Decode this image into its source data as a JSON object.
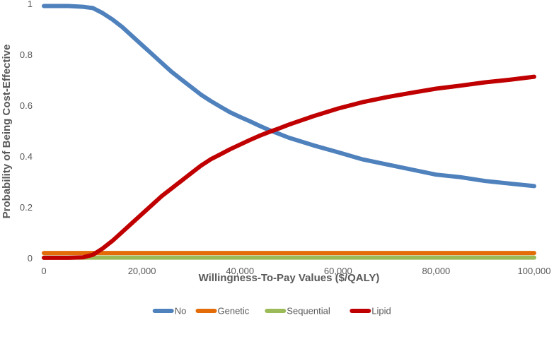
{
  "chart_data": {
    "type": "line",
    "title": "",
    "xlabel": "Willingness-To-Pay Values ($/QALY)",
    "ylabel": "Probability of Being Cost-Effective",
    "xlim": [
      0,
      100000
    ],
    "ylim": [
      0,
      1
    ],
    "x_ticks": [
      0,
      20000,
      40000,
      60000,
      80000,
      100000
    ],
    "x_tick_labels": [
      "0",
      "20,000",
      "40,000",
      "60,000",
      "80,000",
      "100,000"
    ],
    "y_ticks": [
      0,
      0.2,
      0.4,
      0.6,
      0.8,
      1
    ],
    "y_tick_labels": [
      "0",
      "0.2",
      "0.4",
      "0.6",
      "0.8",
      "1"
    ],
    "grid": false,
    "legend_position": "bottom",
    "x": [
      0,
      5000,
      8000,
      10000,
      12000,
      14000,
      16000,
      18000,
      20000,
      22000,
      24000,
      26000,
      28000,
      30000,
      32000,
      34000,
      36000,
      38000,
      40000,
      42000,
      44000,
      46000,
      48000,
      50000,
      55000,
      60000,
      65000,
      70000,
      75000,
      80000,
      85000,
      90000,
      95000,
      100000
    ],
    "series": [
      {
        "name": "No",
        "color": "#4f81bd",
        "values": [
          0.993,
          0.993,
          0.99,
          0.985,
          0.965,
          0.94,
          0.91,
          0.875,
          0.84,
          0.805,
          0.77,
          0.735,
          0.705,
          0.675,
          0.645,
          0.62,
          0.597,
          0.575,
          0.557,
          0.54,
          0.522,
          0.505,
          0.49,
          0.475,
          0.445,
          0.418,
          0.39,
          0.37,
          0.35,
          0.33,
          0.32,
          0.305,
          0.295,
          0.285
        ]
      },
      {
        "name": "Genetic",
        "color": "#e36c09",
        "values": [
          0.022,
          0.022,
          0.022,
          0.022,
          0.022,
          0.022,
          0.022,
          0.022,
          0.022,
          0.022,
          0.022,
          0.022,
          0.022,
          0.022,
          0.022,
          0.022,
          0.022,
          0.022,
          0.022,
          0.022,
          0.022,
          0.022,
          0.022,
          0.022,
          0.022,
          0.022,
          0.022,
          0.022,
          0.022,
          0.022,
          0.022,
          0.022,
          0.022,
          0.022
        ]
      },
      {
        "name": "Sequential",
        "color": "#9bbb59",
        "values": [
          0.004,
          0.004,
          0.004,
          0.004,
          0.004,
          0.004,
          0.004,
          0.004,
          0.004,
          0.004,
          0.004,
          0.004,
          0.004,
          0.004,
          0.004,
          0.004,
          0.004,
          0.004,
          0.004,
          0.004,
          0.004,
          0.004,
          0.004,
          0.004,
          0.004,
          0.004,
          0.004,
          0.004,
          0.004,
          0.004,
          0.004,
          0.004,
          0.004,
          0.004
        ]
      },
      {
        "name": "Lipid",
        "color": "#c00000",
        "values": [
          0.003,
          0.003,
          0.005,
          0.015,
          0.04,
          0.07,
          0.105,
          0.14,
          0.175,
          0.21,
          0.245,
          0.275,
          0.305,
          0.335,
          0.365,
          0.39,
          0.41,
          0.43,
          0.448,
          0.466,
          0.483,
          0.498,
          0.512,
          0.527,
          0.56,
          0.59,
          0.615,
          0.635,
          0.652,
          0.668,
          0.68,
          0.693,
          0.703,
          0.715
        ]
      }
    ]
  }
}
